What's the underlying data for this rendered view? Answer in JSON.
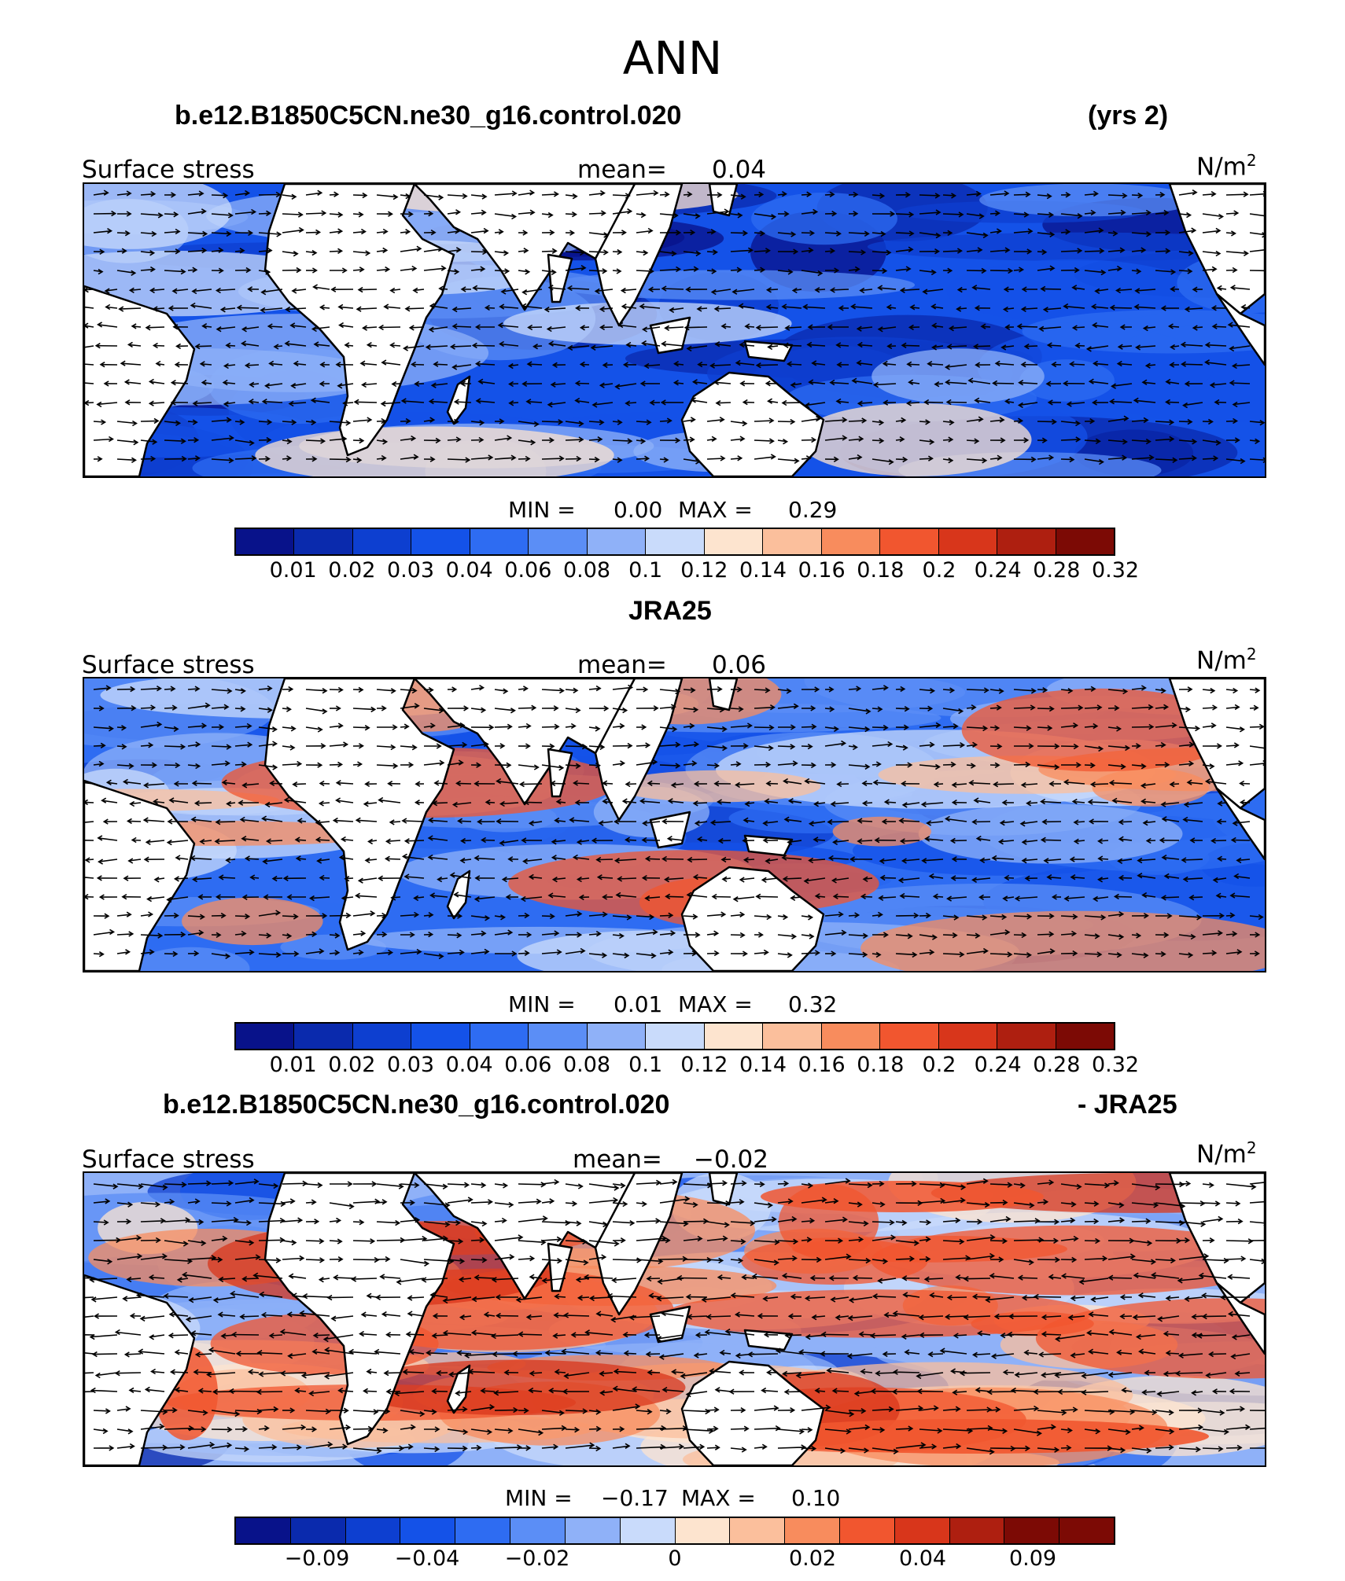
{
  "figure": {
    "title": "ANN",
    "colors": {
      "ocean_blue": "#1f4fdc",
      "land": "#ffffff",
      "coast": "#000000"
    }
  },
  "panels": [
    {
      "case_left": "b.e12.B1850C5CN.ne30_g16.control.020",
      "case_right": "(yrs 2)",
      "variable": "Surface stress",
      "mean_label": "mean=",
      "mean_value": "0.04",
      "units_base": "N/m",
      "units_exp": "2",
      "min_label": "MIN =",
      "min_value": "0.00",
      "max_label": "MAX =",
      "max_value": "0.29",
      "bias": "blue",
      "colorbar": {
        "colors": [
          "#08128a",
          "#0a2aad",
          "#0d3fd0",
          "#1452e8",
          "#2e6cf2",
          "#5b8ef6",
          "#8fb1f8",
          "#c9dbfb",
          "#fde4cf",
          "#fbbf9c",
          "#f88c5d",
          "#f1562f",
          "#d8361b",
          "#ae1f10",
          "#7c0a05"
        ],
        "labels": [
          "0.01",
          "0.02",
          "0.03",
          "0.04",
          "0.06",
          "0.08",
          "0.1",
          "0.12",
          "0.14",
          "0.16",
          "0.18",
          "0.2",
          "0.24",
          "0.28",
          "0.32"
        ]
      }
    },
    {
      "case_left": "JRA25",
      "case_right": "",
      "variable": "Surface stress",
      "mean_label": "mean=",
      "mean_value": "0.06",
      "units_base": "N/m",
      "units_exp": "2",
      "min_label": "MIN =",
      "min_value": "0.01",
      "max_label": "MAX =",
      "max_value": "0.32",
      "bias": "mid",
      "colorbar": {
        "colors": [
          "#08128a",
          "#0a2aad",
          "#0d3fd0",
          "#1452e8",
          "#2e6cf2",
          "#5b8ef6",
          "#8fb1f8",
          "#c9dbfb",
          "#fde4cf",
          "#fbbf9c",
          "#f88c5d",
          "#f1562f",
          "#d8361b",
          "#ae1f10",
          "#7c0a05"
        ],
        "labels": [
          "0.01",
          "0.02",
          "0.03",
          "0.04",
          "0.06",
          "0.08",
          "0.1",
          "0.12",
          "0.14",
          "0.16",
          "0.18",
          "0.2",
          "0.24",
          "0.28",
          "0.32"
        ]
      }
    },
    {
      "case_left": "b.e12.B1850C5CN.ne30_g16.control.020",
      "case_right": "- JRA25",
      "variable": "Surface stress",
      "mean_label": "mean=",
      "mean_value": "−0.02",
      "units_base": "N/m",
      "units_exp": "2",
      "min_label": "MIN =",
      "min_value": "−0.17",
      "max_label": "MAX =",
      "max_value": "0.10",
      "bias": "diff",
      "colorbar": {
        "colors": [
          "#08128a",
          "#0a2aad",
          "#0d3fd0",
          "#1452e8",
          "#2e6cf2",
          "#5b8ef6",
          "#8fb1f8",
          "#c9dbfb",
          "#fde4cf",
          "#fbbf9c",
          "#f88c5d",
          "#f1562f",
          "#d8361b",
          "#ae1f10",
          "#7c0a05",
          "#7c0a05"
        ],
        "labels": [
          "−0.09",
          "−0.04",
          "−0.02",
          "0",
          "0.02",
          "0.04",
          "0.09"
        ],
        "label_slots": [
          1.5,
          3.5,
          5.5,
          8,
          10.5,
          12.5,
          14.5
        ]
      }
    }
  ]
}
